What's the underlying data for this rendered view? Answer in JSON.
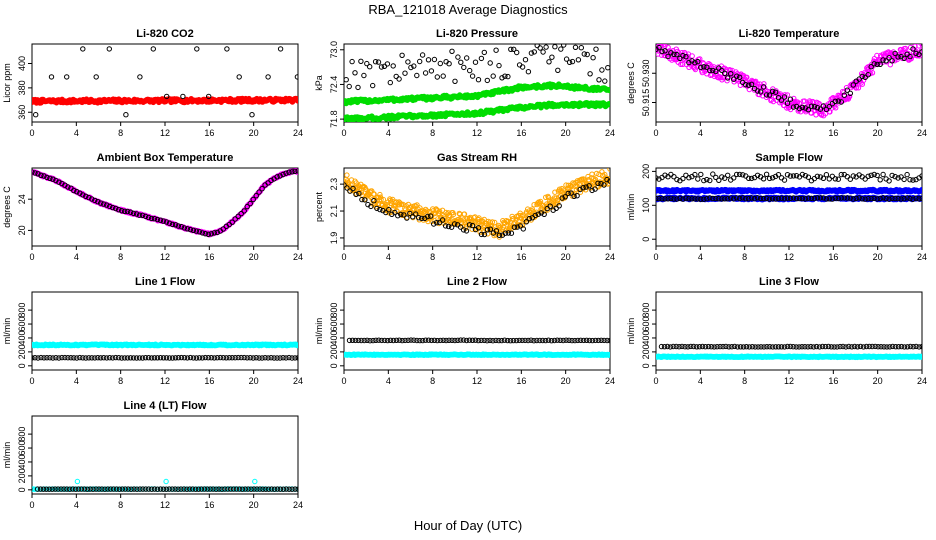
{
  "figure": {
    "title": "RBA_121018  Average Diagnostics",
    "xlabel": "Hour of Day (UTC)"
  },
  "colors": {
    "black": "#000000",
    "red": "#ff0000",
    "green": "#00dd00",
    "magenta": "#ff00ff",
    "orange": "#ffa500",
    "blue": "#0000ff",
    "cyan": "#00ffff"
  },
  "chart_data": [
    {
      "type": "scatter",
      "title": "Li-820 CO2",
      "ylabel": "Licor ppm",
      "xlim": [
        0,
        24
      ],
      "xticks": [
        "0",
        "4",
        "8",
        "12",
        "16",
        "20",
        "24"
      ],
      "ylim": [
        352,
        416
      ],
      "yticks": [
        "360",
        "380",
        "400"
      ],
      "series": [
        {
          "name": "avg",
          "color": "#ff0000",
          "fill": true,
          "kind": "band",
          "x_range": [
            0,
            24
          ],
          "y_start": 369,
          "y_end": 370,
          "spread": 1.4,
          "count": 240
        },
        {
          "name": "discrete",
          "color": "#000000",
          "fill": false,
          "kind": "levels",
          "levels": [
            358,
            373,
            389,
            412
          ],
          "step": 1.3
        }
      ]
    },
    {
      "type": "scatter",
      "title": "Li-820 Pressure",
      "ylabel": "kPa",
      "xlim": [
        0,
        24
      ],
      "xticks": [
        "0",
        "4",
        "8",
        "12",
        "16",
        "20",
        "24"
      ],
      "ylim": [
        71.75,
        73.1
      ],
      "yticks": [
        "71.8",
        "72.4",
        "73.0"
      ],
      "series": [
        {
          "name": "upper",
          "color": "#00dd00",
          "fill": true,
          "kind": "band",
          "x_range": [
            0,
            24
          ],
          "curve": [
            [
              0,
              72.1
            ],
            [
              6,
              72.15
            ],
            [
              12,
              72.2
            ],
            [
              16,
              72.35
            ],
            [
              19,
              72.38
            ],
            [
              24,
              72.3
            ]
          ],
          "spread": 0.03,
          "count": 240
        },
        {
          "name": "lower",
          "color": "#00dd00",
          "fill": true,
          "kind": "band",
          "x_range": [
            0,
            24
          ],
          "curve": [
            [
              0,
              71.8
            ],
            [
              6,
              71.85
            ],
            [
              12,
              71.9
            ],
            [
              16,
              72.0
            ],
            [
              19,
              72.05
            ],
            [
              24,
              72.05
            ]
          ],
          "spread": 0.03,
          "count": 240
        },
        {
          "name": "scatter",
          "color": "#000000",
          "fill": false,
          "kind": "scatter",
          "x_range": [
            0.2,
            23.8
          ],
          "curve": [
            [
              0,
              72.6
            ],
            [
              8,
              72.7
            ],
            [
              14,
              72.75
            ],
            [
              18,
              72.9
            ],
            [
              24,
              72.7
            ]
          ],
          "spread": 0.28,
          "count": 90
        }
      ]
    },
    {
      "type": "scatter",
      "title": "Li-820 Temperature",
      "ylabel": "degrees C",
      "xlim": [
        0,
        24
      ],
      "xticks": [
        "0",
        "4",
        "8",
        "12",
        "16",
        "20",
        "24"
      ],
      "ylim": [
        50.905,
        50.945
      ],
      "yticks": [
        "50.915",
        "50.930"
      ],
      "series": [
        {
          "name": "raw",
          "color": "#ff00ff",
          "fill": false,
          "kind": "band",
          "x_range": [
            0,
            24
          ],
          "curve": [
            [
              0,
              50.943
            ],
            [
              4,
              50.934
            ],
            [
              8,
              50.926
            ],
            [
              12,
              50.915
            ],
            [
              15,
              50.911
            ],
            [
              17,
              50.918
            ],
            [
              20,
              50.936
            ],
            [
              24,
              50.942
            ]
          ],
          "spread": 0.0035,
          "count": 420
        },
        {
          "name": "avg",
          "color": "#000000",
          "fill": false,
          "kind": "band",
          "x_range": [
            0,
            24
          ],
          "curve": [
            [
              0,
              50.943
            ],
            [
              4,
              50.934
            ],
            [
              8,
              50.926
            ],
            [
              12,
              50.915
            ],
            [
              15,
              50.911
            ],
            [
              17,
              50.918
            ],
            [
              20,
              50.936
            ],
            [
              24,
              50.942
            ]
          ],
          "spread": 0.002,
          "count": 90
        }
      ]
    },
    {
      "type": "scatter",
      "title": "Ambient Box Temperature",
      "ylabel": "degrees C",
      "xlim": [
        0,
        24
      ],
      "xticks": [
        "0",
        "4",
        "8",
        "12",
        "16",
        "20",
        "24"
      ],
      "ylim": [
        18,
        28
      ],
      "yticks": [
        "20",
        "24"
      ],
      "series": [
        {
          "name": "raw",
          "color": "#ff00ff",
          "fill": true,
          "kind": "band",
          "x_range": [
            0,
            24
          ],
          "curve": [
            [
              0,
              27.5
            ],
            [
              2,
              26.5
            ],
            [
              4,
              25.0
            ],
            [
              6,
              23.6
            ],
            [
              8,
              22.6
            ],
            [
              10,
              21.9
            ],
            [
              12,
              21.1
            ],
            [
              14,
              20.2
            ],
            [
              16,
              19.5
            ],
            [
              17,
              19.9
            ],
            [
              18,
              21.0
            ],
            [
              19,
              22.3
            ],
            [
              20,
              24.0
            ],
            [
              21,
              25.8
            ],
            [
              22,
              26.8
            ],
            [
              23,
              27.4
            ],
            [
              24,
              27.6
            ]
          ],
          "spread": 0.1,
          "count": 240
        },
        {
          "name": "avg",
          "color": "#000000",
          "fill": false,
          "kind": "band",
          "x_range": [
            0,
            24
          ],
          "curve": [
            [
              0,
              27.5
            ],
            [
              2,
              26.5
            ],
            [
              4,
              25.0
            ],
            [
              6,
              23.6
            ],
            [
              8,
              22.6
            ],
            [
              10,
              21.9
            ],
            [
              12,
              21.1
            ],
            [
              14,
              20.2
            ],
            [
              16,
              19.5
            ],
            [
              17,
              19.9
            ],
            [
              18,
              21.0
            ],
            [
              19,
              22.3
            ],
            [
              20,
              24.0
            ],
            [
              21,
              25.8
            ],
            [
              22,
              26.8
            ],
            [
              23,
              27.4
            ],
            [
              24,
              27.6
            ]
          ],
          "spread": 0.05,
          "count": 90
        }
      ]
    },
    {
      "type": "scatter",
      "title": "Gas Stream RH",
      "ylabel": "percent",
      "xlim": [
        0,
        24
      ],
      "xticks": [
        "0",
        "4",
        "8",
        "12",
        "16",
        "20",
        "24"
      ],
      "ylim": [
        1.84,
        2.42
      ],
      "yticks": [
        "1.9",
        "2.1",
        "2.3"
      ],
      "series": [
        {
          "name": "raw",
          "color": "#ffa500",
          "fill": false,
          "kind": "band",
          "x_range": [
            0,
            24
          ],
          "curve": [
            [
              0,
              2.33
            ],
            [
              2,
              2.22
            ],
            [
              4,
              2.14
            ],
            [
              6,
              2.1
            ],
            [
              8,
              2.07
            ],
            [
              10,
              2.04
            ],
            [
              12,
              2.0
            ],
            [
              14,
              1.96
            ],
            [
              16,
              2.04
            ],
            [
              18,
              2.14
            ],
            [
              20,
              2.24
            ],
            [
              22,
              2.31
            ],
            [
              24,
              2.36
            ]
          ],
          "spread": 0.055,
          "count": 460
        },
        {
          "name": "avg",
          "color": "#000000",
          "fill": false,
          "kind": "band",
          "x_range": [
            0,
            24
          ],
          "curve": [
            [
              0,
              2.3
            ],
            [
              2,
              2.18
            ],
            [
              4,
              2.1
            ],
            [
              6,
              2.06
            ],
            [
              8,
              2.03
            ],
            [
              10,
              2.0
            ],
            [
              12,
              1.96
            ],
            [
              14,
              1.92
            ],
            [
              16,
              1.98
            ],
            [
              18,
              2.08
            ],
            [
              20,
              2.2
            ],
            [
              22,
              2.27
            ],
            [
              24,
              2.33
            ]
          ],
          "spread": 0.03,
          "count": 90
        }
      ]
    },
    {
      "type": "scatter",
      "title": "Sample Flow",
      "ylabel": "ml/min",
      "xlim": [
        0,
        24
      ],
      "xticks": [
        "0",
        "4",
        "8",
        "12",
        "16",
        "20",
        "24"
      ],
      "ylim": [
        -20,
        210
      ],
      "yticks": [
        "0",
        "100",
        "200"
      ],
      "series": [
        {
          "name": "band1",
          "color": "#0000ff",
          "fill": true,
          "kind": "band",
          "x_range": [
            0,
            24
          ],
          "y_start": 143,
          "y_end": 143,
          "spread": 3,
          "count": 240
        },
        {
          "name": "band2",
          "color": "#0000ff",
          "fill": true,
          "kind": "band",
          "x_range": [
            0,
            24
          ],
          "y_start": 120,
          "y_end": 120,
          "spread": 3,
          "count": 240
        },
        {
          "name": "upper",
          "color": "#000000",
          "fill": false,
          "kind": "band",
          "x_range": [
            0,
            24
          ],
          "y_start": 182,
          "y_end": 182,
          "spread": 10,
          "count": 90
        },
        {
          "name": "lower",
          "color": "#000000",
          "fill": false,
          "kind": "band",
          "x_range": [
            0,
            24
          ],
          "y_start": 120,
          "y_end": 120,
          "spread": 2,
          "count": 90
        }
      ]
    },
    {
      "type": "scatter",
      "title": "Line 1 Flow",
      "ylabel": "ml/min",
      "xlim": [
        0,
        24
      ],
      "xticks": [
        "0",
        "4",
        "8",
        "12",
        "16",
        "20",
        "24"
      ],
      "ylim": [
        -60,
        1060
      ],
      "yticks": [
        "0",
        "200",
        "400",
        "600",
        "800"
      ],
      "series": [
        {
          "name": "cyan",
          "color": "#00ffff",
          "fill": true,
          "kind": "band",
          "x_range": [
            0,
            24
          ],
          "y_start": 300,
          "y_end": 300,
          "spread": 8,
          "count": 240
        },
        {
          "name": "black",
          "color": "#000000",
          "fill": false,
          "kind": "band",
          "x_range": [
            0,
            24
          ],
          "y_start": 115,
          "y_end": 115,
          "spread": 3,
          "count": 90
        }
      ]
    },
    {
      "type": "scatter",
      "title": "Line 2 Flow",
      "ylabel": "ml/min",
      "xlim": [
        0,
        24
      ],
      "xticks": [
        "0",
        "4",
        "8",
        "12",
        "16",
        "20",
        "24"
      ],
      "ylim": [
        -60,
        1060
      ],
      "yticks": [
        "0",
        "200",
        "400",
        "600",
        "800"
      ],
      "series": [
        {
          "name": "cyan",
          "color": "#00ffff",
          "fill": true,
          "kind": "band",
          "x_range": [
            0,
            24
          ],
          "y_start": 160,
          "y_end": 160,
          "spread": 6,
          "count": 240
        },
        {
          "name": "black",
          "color": "#000000",
          "fill": false,
          "kind": "band",
          "x_range": [
            0.5,
            24
          ],
          "y_start": 365,
          "y_end": 365,
          "spread": 4,
          "count": 90
        }
      ]
    },
    {
      "type": "scatter",
      "title": "Line 3 Flow",
      "ylabel": "ml/min",
      "xlim": [
        0,
        24
      ],
      "xticks": [
        "0",
        "4",
        "8",
        "12",
        "16",
        "20",
        "24"
      ],
      "ylim": [
        -60,
        1060
      ],
      "yticks": [
        "0",
        "200",
        "400",
        "600",
        "800"
      ],
      "series": [
        {
          "name": "cyan",
          "color": "#00ffff",
          "fill": true,
          "kind": "band",
          "x_range": [
            0,
            24
          ],
          "y_start": 130,
          "y_end": 130,
          "spread": 6,
          "count": 240
        },
        {
          "name": "black",
          "color": "#000000",
          "fill": false,
          "kind": "band",
          "x_range": [
            0.5,
            24
          ],
          "y_start": 275,
          "y_end": 275,
          "spread": 4,
          "count": 90
        }
      ]
    },
    {
      "type": "scatter",
      "title": "Line 4 (LT) Flow",
      "ylabel": "ml/min",
      "xlim": [
        0,
        24
      ],
      "xticks": [
        "0",
        "4",
        "8",
        "12",
        "16",
        "20",
        "24"
      ],
      "ylim": [
        -60,
        1060
      ],
      "yticks": [
        "0",
        "200",
        "400",
        "600",
        "800"
      ],
      "series": [
        {
          "name": "cyan",
          "color": "#00ffff",
          "fill": false,
          "kind": "band",
          "x_range": [
            0,
            24
          ],
          "y_start": 10,
          "y_end": 10,
          "spread": 2,
          "count": 90
        },
        {
          "name": "spikes",
          "color": "#00ffff",
          "fill": false,
          "kind": "points",
          "points": [
            [
              0.1,
              10
            ],
            [
              4.1,
              120
            ],
            [
              12.1,
              120
            ],
            [
              20.1,
              120
            ]
          ]
        },
        {
          "name": "black",
          "color": "#000000",
          "fill": false,
          "kind": "band",
          "x_range": [
            0.5,
            24
          ],
          "y_start": 10,
          "y_end": 10,
          "spread": 1,
          "count": 90
        }
      ]
    }
  ]
}
